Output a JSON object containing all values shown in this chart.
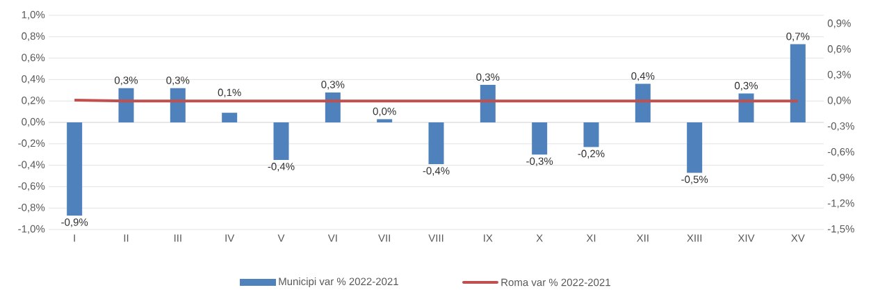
{
  "chart_data": {
    "type": "bar",
    "categories": [
      "I",
      "II",
      "III",
      "IV",
      "V",
      "VI",
      "VII",
      "VIII",
      "IX",
      "X",
      "XI",
      "XII",
      "XIII",
      "XIV",
      "XV"
    ],
    "series": [
      {
        "name": "Municipi var % 2022-2021",
        "color": "#4f81bd",
        "values": [
          -0.87,
          0.32,
          0.32,
          0.09,
          -0.35,
          0.28,
          0.03,
          -0.39,
          0.35,
          -0.3,
          -0.23,
          0.36,
          -0.47,
          0.27,
          0.73
        ],
        "value_labels": [
          "-0,9%",
          "0,3%",
          "0,3%",
          "0,1%",
          "-0,4%",
          "0,3%",
          "0,0%",
          "-0,4%",
          "0,3%",
          "-0,3%",
          "-0,2%",
          "0,4%",
          "-0,5%",
          "0,3%",
          "0,7%"
        ]
      },
      {
        "name": "Roma var % 2022-2021",
        "type": "line",
        "axis": "y2",
        "color": "#c0504d",
        "values": [
          0.01,
          0,
          0,
          0,
          0,
          0,
          0,
          0,
          0,
          0,
          0,
          0,
          0,
          0,
          0
        ]
      }
    ],
    "ylim": [
      -1.0,
      1.0
    ],
    "yticks": [
      {
        "value": -1.0,
        "label": "-1,0%"
      },
      {
        "value": -0.8,
        "label": "-0,8%"
      },
      {
        "value": -0.6,
        "label": "-0,6%"
      },
      {
        "value": -0.4,
        "label": "-0,4%"
      },
      {
        "value": -0.2,
        "label": "-0,2%"
      },
      {
        "value": 0.0,
        "label": "0,0%"
      },
      {
        "value": 0.2,
        "label": "0,2%"
      },
      {
        "value": 0.4,
        "label": "0,4%"
      },
      {
        "value": 0.6,
        "label": "0,6%"
      },
      {
        "value": 0.8,
        "label": "0,8%"
      },
      {
        "value": 1.0,
        "label": "1,0%"
      }
    ],
    "y2lim": [
      -1.5,
      1.0
    ],
    "y2ticks": [
      {
        "value": -1.5,
        "label": "-1,5%"
      },
      {
        "value": -1.2,
        "label": "-1,2%"
      },
      {
        "value": -0.9,
        "label": "-0,9%"
      },
      {
        "value": -0.6,
        "label": "-0,6%"
      },
      {
        "value": -0.3,
        "label": "-0,3%"
      },
      {
        "value": 0.0,
        "label": "0,0%"
      },
      {
        "value": 0.3,
        "label": "0,3%"
      },
      {
        "value": 0.6,
        "label": "0,6%"
      },
      {
        "value": 0.9,
        "label": "0,9%"
      }
    ],
    "grid": "y",
    "legend": "bottom"
  }
}
